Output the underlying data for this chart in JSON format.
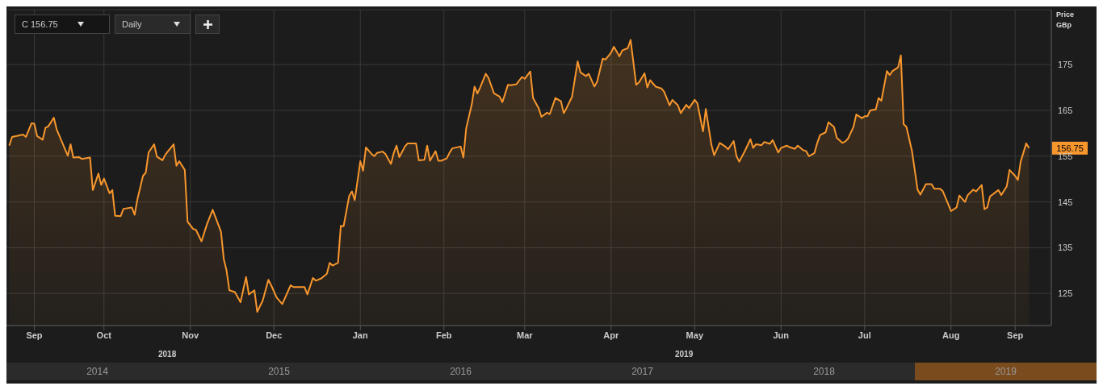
{
  "chart_data": {
    "type": "area",
    "ylabel": "Price GBp",
    "color": "#f7962d",
    "x": [
      "2018-09-12",
      "2018-09-13",
      "2018-09-17",
      "2018-09-18",
      "2018-09-20",
      "2018-09-21",
      "2018-09-22",
      "2018-09-24",
      "2018-09-25",
      "2018-09-26",
      "2018-09-28",
      "2018-09-29",
      "2018-10-03",
      "2018-10-04",
      "2018-10-05",
      "2018-10-07",
      "2018-10-08",
      "2018-10-11",
      "2018-10-12",
      "2018-10-14",
      "2018-10-15",
      "2018-10-16",
      "2018-10-18",
      "2018-10-19",
      "2018-10-20",
      "2018-10-22",
      "2018-10-23",
      "2018-10-26",
      "2018-10-27",
      "2018-10-28",
      "2018-10-30",
      "2018-10-31",
      "2018-11-01",
      "2018-11-03",
      "2018-11-04",
      "2018-11-06",
      "2018-11-07",
      "2018-11-08",
      "2018-11-10",
      "2018-11-11",
      "2018-11-12",
      "2018-11-14",
      "2018-11-15",
      "2018-11-17",
      "2018-11-18",
      "2018-11-20",
      "2018-11-22",
      "2018-11-24",
      "2018-11-25",
      "2018-11-27",
      "2018-11-28",
      "2018-11-29",
      "2018-11-30",
      "2018-12-02",
      "2018-12-04",
      "2018-12-06",
      "2018-12-07",
      "2018-12-09",
      "2018-12-10",
      "2018-12-12",
      "2018-12-14",
      "2018-12-15",
      "2018-12-17",
      "2018-12-19",
      "2018-12-22",
      "2018-12-23",
      "2018-12-27",
      "2018-12-28",
      "2018-12-30",
      "2018-12-31",
      "2019-01-02",
      "2019-01-04",
      "2019-01-05",
      "2019-01-06",
      "2019-01-08",
      "2019-01-09",
      "2019-01-10",
      "2019-01-12",
      "2019-01-13",
      "2019-01-14",
      "2019-01-16",
      "2019-01-17",
      "2019-01-18",
      "2019-01-20",
      "2019-01-21",
      "2019-01-22",
      "2019-01-24",
      "2019-01-25",
      "2019-01-27",
      "2019-01-28",
      "2019-01-29",
      "2019-01-30",
      "2019-02-01",
      "2019-02-02",
      "2019-02-05",
      "2019-02-06",
      "2019-02-08",
      "2019-02-09",
      "2019-02-10",
      "2019-02-12",
      "2019-02-13",
      "2019-02-14",
      "2019-02-16",
      "2019-02-17",
      "2019-02-18",
      "2019-02-21",
      "2019-02-22",
      "2019-02-23",
      "2019-02-25",
      "2019-02-26",
      "2019-02-27",
      "2019-02-28",
      "2019-03-02",
      "2019-03-03",
      "2019-03-05",
      "2019-03-07",
      "2019-03-08",
      "2019-03-10",
      "2019-03-11",
      "2019-03-13",
      "2019-03-15",
      "2019-03-16",
      "2019-03-18",
      "2019-03-19",
      "2019-03-21",
      "2019-03-22",
      "2019-03-24",
      "2019-03-25",
      "2019-03-27",
      "2019-03-29",
      "2019-03-30",
      "2019-03-31",
      "2019-04-02",
      "2019-04-04",
      "2019-04-05",
      "2019-04-07",
      "2019-04-08",
      "2019-04-10",
      "2019-04-11",
      "2019-04-13",
      "2019-04-14",
      "2019-04-16",
      "2019-04-17",
      "2019-04-19",
      "2019-04-20",
      "2019-04-22",
      "2019-04-23",
      "2019-04-25",
      "2019-04-26",
      "2019-04-28",
      "2019-04-29",
      "2019-04-30",
      "2019-05-02",
      "2019-05-04",
      "2019-05-05",
      "2019-05-07",
      "2019-05-08",
      "2019-05-10",
      "2019-05-11",
      "2019-05-13",
      "2019-05-14",
      "2019-05-16",
      "2019-05-17",
      "2019-05-19",
      "2019-05-20",
      "2019-05-22",
      "2019-05-23",
      "2019-05-25",
      "2019-05-27",
      "2019-05-28",
      "2019-05-30",
      "2019-05-31",
      "2019-06-01",
      "2019-06-03",
      "2019-06-05",
      "2019-06-06",
      "2019-06-07",
      "2019-06-09",
      "2019-06-10",
      "2019-06-12",
      "2019-06-13",
      "2019-06-15",
      "2019-06-16",
      "2019-06-18",
      "2019-06-19",
      "2019-06-21",
      "2019-06-22",
      "2019-06-24",
      "2019-06-25",
      "2019-06-26",
      "2019-06-28",
      "2019-06-29",
      "2019-06-30",
      "2019-07-02",
      "2019-07-03",
      "2019-07-05",
      "2019-07-06",
      "2019-07-08",
      "2019-07-09",
      "2019-07-10",
      "2019-07-12",
      "2019-07-13",
      "2019-07-15",
      "2019-07-16",
      "2019-07-17",
      "2019-07-18",
      "2019-07-20",
      "2019-07-21",
      "2019-07-22",
      "2019-07-24",
      "2019-07-25",
      "2019-07-26",
      "2019-07-28",
      "2019-07-29",
      "2019-07-30",
      "2019-07-31",
      "2019-08-02",
      "2019-08-04",
      "2019-08-05",
      "2019-08-07",
      "2019-08-09",
      "2019-08-10",
      "2019-08-12",
      "2019-08-13",
      "2019-08-15",
      "2019-08-16",
      "2019-08-18",
      "2019-08-19",
      "2019-08-21",
      "2019-08-22",
      "2019-08-24",
      "2019-08-25",
      "2019-08-27",
      "2019-08-28",
      "2019-08-29",
      "2019-08-30",
      "2019-09-02",
      "2019-09-03",
      "2019-09-05",
      "2019-09-06",
      "2019-09-08",
      "2019-09-09",
      "2019-09-10",
      "2019-09-12",
      "2019-09-13"
    ],
    "values": [
      157.3,
      159.2,
      159.7,
      159.2,
      162.2,
      162.1,
      159.4,
      158.6,
      161.2,
      161.5,
      163.4,
      160.9,
      155.1,
      157.6,
      154.7,
      154.8,
      154.4,
      154.7,
      147.6,
      151.2,
      148.7,
      150.1,
      146.9,
      147.6,
      142.0,
      141.9,
      143.5,
      143.8,
      142.2,
      145.6,
      150.7,
      151.4,
      155.8,
      157.6,
      154.9,
      154.1,
      155.3,
      156.1,
      157.6,
      152.9,
      153.9,
      152.0,
      140.7,
      139.1,
      138.9,
      136.4,
      140.2,
      143.3,
      141.7,
      138.5,
      132.5,
      130.0,
      125.7,
      125.3,
      123.1,
      128.6,
      124.8,
      125.7,
      121.0,
      123.5,
      128.0,
      126.8,
      124.1,
      122.7,
      126.8,
      126.4,
      126.4,
      124.8,
      128.4,
      127.8,
      128.3,
      129.3,
      131.7,
      131.1,
      131.7,
      139.8,
      139.7,
      146.3,
      147.3,
      145.4,
      153.9,
      151.8,
      156.9,
      155.5,
      155.0,
      155.7,
      156.0,
      155.5,
      153.3,
      155.7,
      157.3,
      154.8,
      157.1,
      157.8,
      157.8,
      154.1,
      154.2,
      157.3,
      154.0,
      156.1,
      154.0,
      154.0,
      154.5,
      155.7,
      156.7,
      157.1,
      154.7,
      161.1,
      166.3,
      170.2,
      168.7,
      170.0,
      173.0,
      172.1,
      168.7,
      168.0,
      166.8,
      170.6,
      170.5,
      170.7,
      172.3,
      171.9,
      173.5,
      167.7,
      165.5,
      163.6,
      164.5,
      164.2,
      167.7,
      167.0,
      164.4,
      165.5,
      168.0,
      175.7,
      173.3,
      172.5,
      173.0,
      170.2,
      171.3,
      176.3,
      176.1,
      177.6,
      178.9,
      176.8,
      178.1,
      178.6,
      180.4,
      170.6,
      171.1,
      173.1,
      170.0,
      171.6,
      170.2,
      169.8,
      169.1,
      166.1,
      167.3,
      166.1,
      164.4,
      166.2,
      165.5,
      167.3,
      166.5,
      160.4,
      165.3,
      157.5,
      155.2,
      157.9,
      157.1,
      156.5,
      158.3,
      155.0,
      153.8,
      156.1,
      158.7,
      156.8,
      157.6,
      157.4,
      158.1,
      157.7,
      158.5,
      155.8,
      156.8,
      157.3,
      157.0,
      156.6,
      157.3,
      156.3,
      156.1,
      155.0,
      155.7,
      157.9,
      159.6,
      160.2,
      162.4,
      161.4,
      159.0,
      157.9,
      158.2,
      158.8,
      161.4,
      164.1,
      163.3,
      163.7,
      163.7,
      165.0,
      165.2,
      167.7,
      167.1,
      173.6,
      172.7,
      173.6,
      174.4,
      177.0,
      162.0,
      161.4,
      156.1,
      147.7,
      146.6,
      148.9,
      148.9,
      147.9,
      147.9,
      147.4,
      144.5,
      143.0,
      143.8,
      146.4,
      145.0,
      146.5,
      147.7,
      147.3,
      148.7,
      143.4,
      143.8,
      146.2,
      147.6,
      146.5,
      148.4,
      152.0,
      150.7,
      149.8,
      153.8,
      157.8,
      156.75
    ],
    "xlim": [
      "2018-09-11",
      "2019-09-21"
    ],
    "xticks": [
      {
        "value": "2018-09-21",
        "label": "Sep"
      },
      {
        "value": "2018-10-16",
        "label": "Oct"
      },
      {
        "value": "2018-11-16",
        "label": "Nov"
      },
      {
        "value": "2018-12-16",
        "label": "Dec"
      },
      {
        "value": "2019-01-16",
        "label": "Jan"
      },
      {
        "value": "2019-02-15",
        "label": "Feb"
      },
      {
        "value": "2019-03-16",
        "label": "Mar"
      },
      {
        "value": "2019-04-16",
        "label": "Apr"
      },
      {
        "value": "2019-05-16",
        "label": "May"
      },
      {
        "value": "2019-06-16",
        "label": "Jun"
      },
      {
        "value": "2019-07-16",
        "label": "Jul"
      },
      {
        "value": "2019-08-16",
        "label": "Aug"
      },
      {
        "value": "2019-09-08",
        "label": "Sep"
      }
    ],
    "ylim": [
      118,
      187
    ],
    "yticks": [
      125,
      135,
      145,
      155,
      165,
      175
    ],
    "grid": true,
    "annotations": [
      "C 156.75",
      "Daily",
      "2018",
      "2019",
      "2014",
      "2015",
      "2016",
      "2017",
      "2018",
      "2019",
      "156.75"
    ]
  }
}
